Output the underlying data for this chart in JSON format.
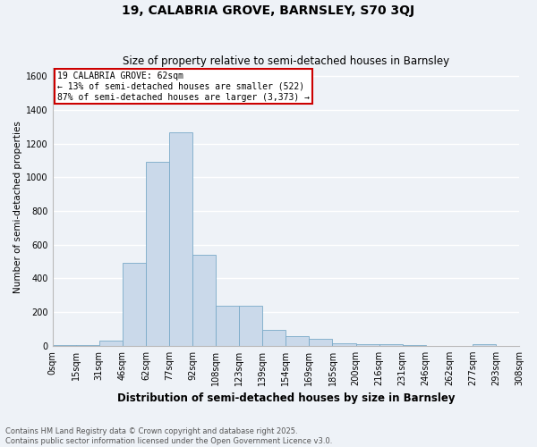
{
  "title": "19, CALABRIA GROVE, BARNSLEY, S70 3QJ",
  "subtitle": "Size of property relative to semi-detached houses in Barnsley",
  "xlabel": "Distribution of semi-detached houses by size in Barnsley",
  "ylabel": "Number of semi-detached properties",
  "footer1": "Contains HM Land Registry data © Crown copyright and database right 2025.",
  "footer2": "Contains public sector information licensed under the Open Government Licence v3.0.",
  "annotation_title": "19 CALABRIA GROVE: 62sqm",
  "annotation_line1": "← 13% of semi-detached houses are smaller (522)",
  "annotation_line2": "87% of semi-detached houses are larger (3,373) →",
  "bar_color": "#cad9ea",
  "bar_edge_color": "#7aaac8",
  "bg_color": "#eef2f7",
  "grid_color": "#ffffff",
  "annotation_box_edge": "#cc0000",
  "categories": [
    "0sqm",
    "15sqm",
    "31sqm",
    "46sqm",
    "62sqm",
    "77sqm",
    "92sqm",
    "108sqm",
    "123sqm",
    "139sqm",
    "154sqm",
    "169sqm",
    "185sqm",
    "200sqm",
    "216sqm",
    "231sqm",
    "246sqm",
    "262sqm",
    "277sqm",
    "293sqm",
    "308sqm"
  ],
  "bar_heights": [
    5,
    3,
    30,
    490,
    1090,
    1265,
    540,
    240,
    240,
    95,
    58,
    40,
    15,
    10,
    10,
    3,
    0,
    0,
    12,
    0,
    0
  ],
  "ylim": [
    0,
    1650
  ],
  "yticks": [
    0,
    200,
    400,
    600,
    800,
    1000,
    1200,
    1400,
    1600
  ],
  "title_fontsize": 10,
  "subtitle_fontsize": 8.5,
  "ylabel_fontsize": 7.5,
  "xlabel_fontsize": 8.5,
  "tick_fontsize": 7,
  "footer_fontsize": 6,
  "annotation_fontsize": 7
}
